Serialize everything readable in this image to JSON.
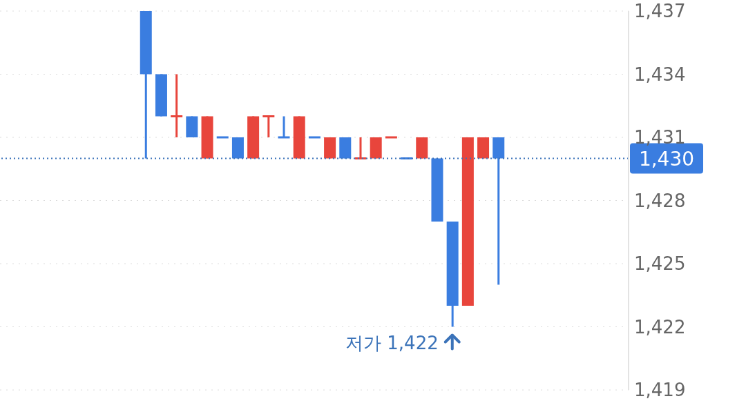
{
  "chart_data": {
    "type": "candlestick",
    "categories": [
      null,
      null,
      null,
      null,
      null,
      null,
      null,
      null,
      null,
      null,
      null,
      null,
      null,
      null,
      null,
      null,
      null,
      null,
      null,
      null,
      null,
      null,
      null,
      null,
      null,
      null,
      null,
      null,
      null,
      null,
      null,
      null,
      null,
      null,
      null,
      null,
      null,
      null,
      null,
      null,
      null
    ],
    "ohlc": [
      null,
      null,
      null,
      null,
      null,
      null,
      null,
      null,
      null,
      [
        1437,
        1437,
        1430,
        1434
      ],
      [
        1434,
        1434,
        1432,
        1432
      ],
      [
        1432,
        1434,
        1431,
        1432
      ],
      [
        1432,
        1432,
        1431,
        1431
      ],
      [
        1430,
        1432,
        1430,
        1432
      ],
      [
        1431,
        1431,
        1431,
        1431
      ],
      [
        1431,
        1431,
        1430,
        1430
      ],
      [
        1430,
        1432,
        1430,
        1432
      ],
      [
        1432,
        1432,
        1431,
        1432
      ],
      [
        1431,
        1432,
        1431,
        1431
      ],
      [
        1430,
        1432,
        1430,
        1432
      ],
      [
        1431,
        1431,
        1431,
        1431
      ],
      [
        1430,
        1431,
        1430,
        1431
      ],
      [
        1431,
        1431,
        1430,
        1430
      ],
      [
        1430,
        1431,
        1430,
        1430
      ],
      [
        1430,
        1431,
        1430,
        1431
      ],
      [
        1431,
        1431,
        1431,
        1431
      ],
      [
        1430,
        1430,
        1430,
        1430
      ],
      [
        1430,
        1431,
        1430,
        1431
      ],
      [
        1430,
        1430,
        1427,
        1427
      ],
      [
        1427,
        1427,
        1422,
        1423
      ],
      [
        1423,
        1431,
        1423,
        1431
      ],
      [
        1430,
        1431,
        1430,
        1431
      ],
      [
        1431,
        1431,
        1424,
        1430
      ],
      null,
      null,
      null,
      null,
      null,
      null,
      null,
      null
    ],
    "colors": [
      null,
      null,
      null,
      null,
      null,
      null,
      null,
      null,
      null,
      "#3a7de0",
      "#3a7de0",
      "#e8453c",
      "#3a7de0",
      "#e8453c",
      "#3a7de0",
      "#3a7de0",
      "#e8453c",
      "#e8453c",
      "#3a7de0",
      "#e8453c",
      "#3a7de0",
      "#e8453c",
      "#3a7de0",
      "#e8453c",
      "#e8453c",
      "#e8453c",
      "#3a7de0",
      "#e8453c",
      "#3a7de0",
      "#3a7de0",
      "#e8453c",
      "#e8453c",
      "#3a7de0",
      null,
      null,
      null,
      null,
      null,
      null,
      null,
      null
    ],
    "ylim": [
      1419,
      1437
    ],
    "yticks": [
      {
        "value": 1419,
        "label": "1,419"
      },
      {
        "value": 1422,
        "label": "1,422"
      },
      {
        "value": 1425,
        "label": "1,425"
      },
      {
        "value": 1428,
        "label": "1,428"
      },
      {
        "value": 1431,
        "label": "1,431"
      },
      {
        "value": 1434,
        "label": "1,434"
      },
      {
        "value": 1437,
        "label": "1,437"
      }
    ],
    "grid": "y",
    "tick_labels": "y",
    "ref_lines": [
      {
        "axis": "y",
        "value": 1430,
        "label": "1,430",
        "color": "#3b73b9",
        "line_style": "dotted"
      }
    ],
    "annotations": [
      "저가 1,422"
    ]
  }
}
